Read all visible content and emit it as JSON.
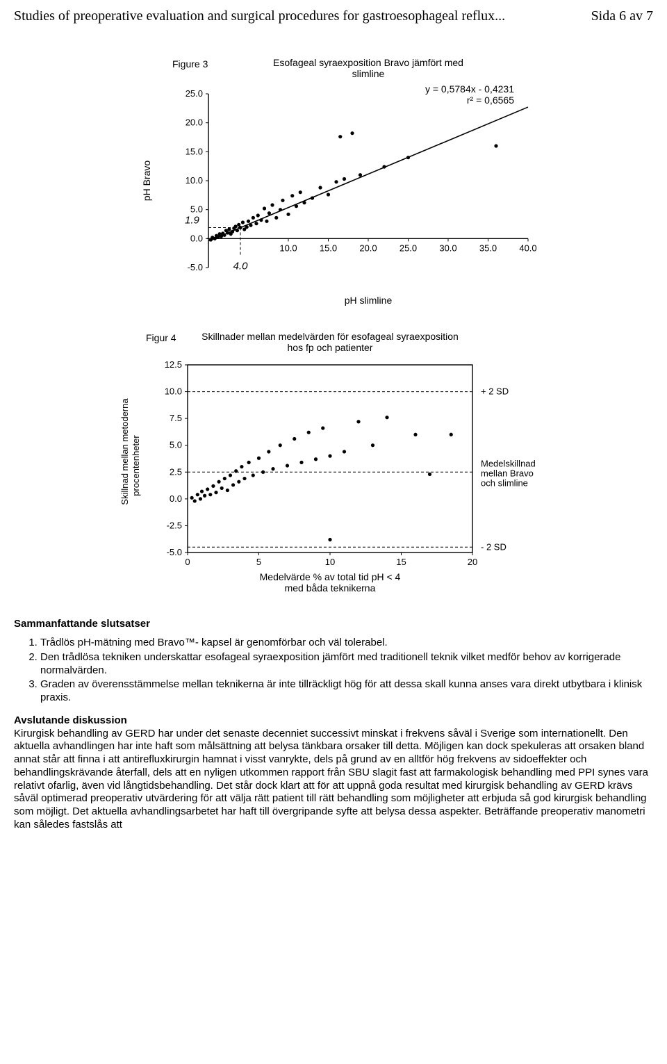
{
  "header": {
    "title": "Studies of preoperative evaluation and surgical procedures for gastroesophageal reflux...",
    "page": "Sida 6 av 7"
  },
  "figure3": {
    "type": "scatter",
    "label": "Figure 3",
    "title_line1": "Esofageal syraexposition Bravo jämfört med",
    "title_line2": "slimline",
    "equation": "y = 0,5784x - 0,4231",
    "r2": "r² = 0,6565",
    "xlabel": "pH slimline",
    "ylabel": "pH Bravo",
    "xlim": [
      0,
      40
    ],
    "ylim": [
      -5,
      25
    ],
    "xticks": [
      "10.0",
      "15.0",
      "20.0",
      "25.0",
      "30.0",
      "35.0",
      "40.0"
    ],
    "yticks": [
      "-5.0",
      "0.0",
      "5.0",
      "10.0",
      "15.0",
      "20.0",
      "25.0"
    ],
    "ref_x_label": "4.0",
    "ref_y_label": "1.9",
    "ref_x": 4.0,
    "ref_y": 1.9,
    "regression": {
      "slope": 0.5784,
      "intercept": -0.4231
    },
    "marker_color": "#000000",
    "line_color": "#000000",
    "background_color": "#ffffff",
    "points": [
      [
        0.3,
        -0.2
      ],
      [
        0.5,
        0.2
      ],
      [
        0.8,
        0.0
      ],
      [
        1.0,
        0.5
      ],
      [
        1.2,
        0.3
      ],
      [
        1.4,
        0.8
      ],
      [
        1.6,
        0.4
      ],
      [
        1.8,
        0.9
      ],
      [
        2.0,
        0.6
      ],
      [
        2.2,
        1.4
      ],
      [
        2.4,
        1.0
      ],
      [
        2.6,
        1.6
      ],
      [
        2.8,
        0.8
      ],
      [
        3.0,
        1.2
      ],
      [
        3.2,
        1.8
      ],
      [
        3.4,
        2.1
      ],
      [
        3.6,
        1.4
      ],
      [
        3.8,
        2.4
      ],
      [
        4.0,
        1.9
      ],
      [
        4.3,
        2.8
      ],
      [
        4.5,
        1.6
      ],
      [
        4.8,
        2.0
      ],
      [
        5.0,
        3.0
      ],
      [
        5.3,
        2.3
      ],
      [
        5.6,
        3.6
      ],
      [
        6.0,
        2.6
      ],
      [
        6.2,
        4.0
      ],
      [
        6.6,
        3.2
      ],
      [
        7.0,
        5.2
      ],
      [
        7.3,
        3.0
      ],
      [
        7.6,
        4.4
      ],
      [
        8.0,
        5.8
      ],
      [
        8.5,
        3.6
      ],
      [
        9.0,
        5.0
      ],
      [
        9.3,
        6.6
      ],
      [
        10.0,
        4.2
      ],
      [
        10.5,
        7.4
      ],
      [
        11.0,
        5.6
      ],
      [
        11.5,
        8.0
      ],
      [
        12.0,
        6.2
      ],
      [
        13.0,
        7.0
      ],
      [
        14.0,
        8.8
      ],
      [
        15.0,
        7.6
      ],
      [
        16.0,
        9.8
      ],
      [
        16.5,
        17.6
      ],
      [
        17.0,
        10.3
      ],
      [
        18.0,
        18.2
      ],
      [
        19.0,
        11.0
      ],
      [
        22.0,
        12.4
      ],
      [
        25.0,
        14.0
      ],
      [
        36.0,
        16.0
      ]
    ]
  },
  "figure4": {
    "type": "scatter",
    "label": "Figur 4",
    "title_line1": "Skillnader mellan medelvärden för esofageal syraexposition",
    "title_line2": "hos fp och patienter",
    "xlabel_line1": "Medelvärde % av total tid pH < 4",
    "xlabel_line2": "med båda teknikerna",
    "ylabel_line1": "Skillnad mellan  metoderna",
    "ylabel_line2": "procentenheter",
    "xlim": [
      0,
      20
    ],
    "ylim": [
      -5,
      12.5
    ],
    "xticks": [
      "0",
      "5",
      "10",
      "15",
      "20"
    ],
    "yticks": [
      "-5.0",
      "-2.5",
      "0.0",
      "2.5",
      "5.0",
      "7.5",
      "10.0",
      "12.5"
    ],
    "upper_band_y": 10.0,
    "lower_band_y": -4.5,
    "mean_line_y": 2.5,
    "upper_band_label": "+ 2 SD",
    "lower_band_label": "- 2 SD",
    "mean_label_line1": "Medelskillnad",
    "mean_label_line2": "mellan Bravo",
    "mean_label_line3": "och slimline",
    "marker_color": "#000000",
    "line_color": "#000000",
    "background_color": "#ffffff",
    "points": [
      [
        0.3,
        0.1
      ],
      [
        0.5,
        -0.2
      ],
      [
        0.7,
        0.4
      ],
      [
        0.9,
        0.0
      ],
      [
        1.0,
        0.7
      ],
      [
        1.2,
        0.3
      ],
      [
        1.4,
        0.9
      ],
      [
        1.6,
        0.4
      ],
      [
        1.8,
        1.2
      ],
      [
        2.0,
        0.6
      ],
      [
        2.2,
        1.6
      ],
      [
        2.4,
        1.0
      ],
      [
        2.6,
        1.9
      ],
      [
        2.8,
        0.8
      ],
      [
        3.0,
        2.2
      ],
      [
        3.2,
        1.3
      ],
      [
        3.4,
        2.6
      ],
      [
        3.6,
        1.6
      ],
      [
        3.8,
        3.0
      ],
      [
        4.0,
        1.9
      ],
      [
        4.3,
        3.4
      ],
      [
        4.6,
        2.2
      ],
      [
        5.0,
        3.8
      ],
      [
        5.3,
        2.5
      ],
      [
        5.7,
        4.4
      ],
      [
        6.0,
        2.8
      ],
      [
        6.5,
        5.0
      ],
      [
        7.0,
        3.1
      ],
      [
        7.5,
        5.6
      ],
      [
        8.0,
        3.4
      ],
      [
        8.5,
        6.2
      ],
      [
        9.0,
        3.7
      ],
      [
        9.5,
        6.6
      ],
      [
        10.0,
        4.0
      ],
      [
        10.0,
        -3.8
      ],
      [
        11.0,
        4.4
      ],
      [
        12.0,
        7.2
      ],
      [
        13.0,
        5.0
      ],
      [
        14.0,
        7.6
      ],
      [
        16.0,
        6.0
      ],
      [
        17.0,
        2.3
      ],
      [
        18.5,
        6.0
      ]
    ]
  },
  "conclusions": {
    "heading": "Sammanfattande slutsatser",
    "items": [
      "Trådlös pH-mätning med Bravo™- kapsel är genomförbar och väl tolerabel.",
      "Den trådlösa tekniken underskattar esofageal syraexposition jämfört med traditionell teknik vilket medför behov av korrigerade normalvärden.",
      "Graden av överensstämmelse mellan teknikerna är inte tillräckligt hög för att dessa skall kunna anses vara direkt utbytbara i klinisk praxis."
    ]
  },
  "discussion": {
    "heading": "Avslutande diskussion",
    "body": "Kirurgisk behandling av GERD har under det senaste decenniet successivt minskat i frekvens såväl i Sverige som internationellt. Den aktuella avhandlingen har inte haft som målsättning att belysa tänkbara orsaker till detta. Möjligen kan dock spekuleras att orsaken bland annat står att finna i att antirefluxkirurgin hamnat i visst vanrykte, dels på grund av en alltför hög frekvens av sidoeffekter och behandlingskrävande återfall, dels att en nyligen utkommen rapport från SBU slagit fast att farmakologisk behandling med PPI synes vara relativt ofarlig, även vid långtidsbehandling. Det står dock klart att för att uppnå goda resultat med kirurgisk behandling av GERD krävs såväl optimerad preoperativ utvärdering för att välja rätt patient till rätt behandling som möjligheter att erbjuda så god kirurgisk behandling som möjligt. Det aktuella avhandlingsarbetet har haft till övergripande syfte att belysa dessa aspekter. Beträffande preoperativ manometri kan således fastslås att"
  }
}
